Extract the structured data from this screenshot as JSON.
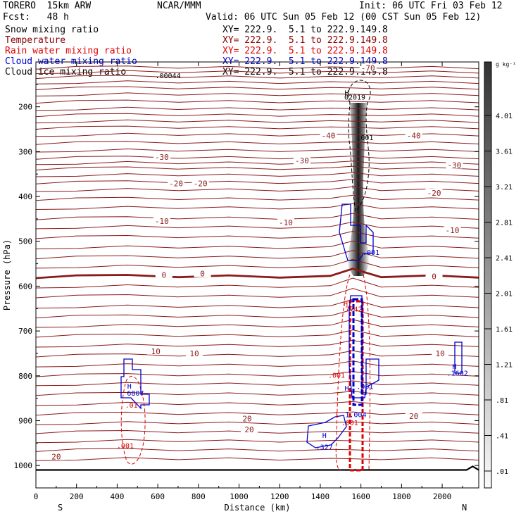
{
  "header": {
    "model": "TORERO  15km ARW",
    "center": "NCAR/MMM",
    "init": "Init: 06 UTC Fri 03 Feb 12",
    "fcst": "Fcst:   48 h",
    "valid": "Valid: 06 UTC Sun 05 Feb 12 (00 CST Sun 05 Feb 12)"
  },
  "fields": [
    {
      "name": "Snow mixing ratio",
      "range": "XY= 222.9.  5.1 to 222.9.149.8",
      "color": "#000000"
    },
    {
      "name": "Temperature",
      "range": "XY= 222.9.  5.1 to 222.9.149.8",
      "color": "#8b0000"
    },
    {
      "name": "Rain water mixing ratio",
      "range": "XY= 222.9.  5.1 to 222.9.149.8",
      "color": "#e00000"
    },
    {
      "name": "Cloud water mixing ratio",
      "range": "XY= 222.9.  5.1 to 222.9.149.8",
      "color": "#0000cc"
    },
    {
      "name": "Cloud ice mixing ratio",
      "range": "XY= 222.9.  5.1 to 222.9.149.8",
      "color": "#000000"
    }
  ],
  "chart_data": {
    "type": "cross-section",
    "xlabel": "Distance (km)",
    "ylabel": "Pressure (hPa)",
    "xlim": [
      0,
      2180
    ],
    "ylim": [
      1050,
      100
    ],
    "x_ticks": [
      "0",
      "200",
      "400",
      "600",
      "800",
      "1000",
      "1200",
      "1400",
      "1600",
      "1800",
      "2000"
    ],
    "y_ticks": [
      "200",
      "300",
      "400",
      "500",
      "600",
      "700",
      "800",
      "900",
      "1000"
    ],
    "x_end_labels": {
      "left": "S",
      "right": "N"
    },
    "colorbar": {
      "unit": "g kg⁻¹",
      "ticks": [
        "4.01",
        "3.61",
        "3.21",
        "2.81",
        "2.41",
        "2.01",
        "1.61",
        "1.21",
        ".81",
        ".41",
        ".01"
      ]
    },
    "temperature_contours": {
      "interval": 5,
      "labels": [
        {
          "text": "-70",
          "x": 1635,
          "p": 113
        },
        {
          "text": "-40",
          "x": 1440,
          "p": 264
        },
        {
          "text": "-40",
          "x": 1860,
          "p": 264
        },
        {
          "text": "-30",
          "x": 620,
          "p": 312
        },
        {
          "text": "-30",
          "x": 1310,
          "p": 320
        },
        {
          "text": "-30",
          "x": 2060,
          "p": 330
        },
        {
          "text": "-20",
          "x": 690,
          "p": 371
        },
        {
          "text": "-20",
          "x": 810,
          "p": 371
        },
        {
          "text": "-20",
          "x": 1960,
          "p": 392
        },
        {
          "text": "-10",
          "x": 620,
          "p": 455
        },
        {
          "text": "-10",
          "x": 1230,
          "p": 458
        },
        {
          "text": "-10",
          "x": 2050,
          "p": 475
        },
        {
          "text": "0",
          "x": 630,
          "p": 575
        },
        {
          "text": "0",
          "x": 820,
          "p": 572
        },
        {
          "text": "0",
          "x": 1960,
          "p": 578
        },
        {
          "text": "10",
          "x": 590,
          "p": 745
        },
        {
          "text": "10",
          "x": 780,
          "p": 750
        },
        {
          "text": "10",
          "x": 1990,
          "p": 750
        },
        {
          "text": "20",
          "x": 1050,
          "p": 920
        },
        {
          "text": "20",
          "x": 1040,
          "p": 895
        },
        {
          "text": "20",
          "x": 1860,
          "p": 890
        },
        {
          "text": "20",
          "x": 100,
          "p": 980
        }
      ]
    },
    "annotations": [
      {
        "text": ".00044",
        "x": 650,
        "p": 130,
        "color": "#000000"
      },
      {
        "text": "H",
        "x": 1530,
        "p": 168,
        "color": "#000000"
      },
      {
        "text": "02019",
        "x": 1570,
        "p": 178,
        "color": "#000000"
      },
      {
        "text": ".001",
        "x": 1620,
        "p": 268,
        "color": "#000000"
      },
      {
        "text": ".001",
        "x": 1650,
        "p": 524,
        "color": "#0000cc"
      },
      {
        "text": "H",
        "x": 1525,
        "p": 638,
        "color": "#e00000"
      },
      {
        "text": "7742",
        "x": 1565,
        "p": 650,
        "color": "#e00000"
      },
      {
        "text": ".001",
        "x": 1480,
        "p": 798,
        "color": "#e00000"
      },
      {
        "text": ".001",
        "x": 1620,
        "p": 823,
        "color": "#0000cc"
      },
      {
        "text": "H",
        "x": 1530,
        "p": 827,
        "color": "#0000cc"
      },
      {
        "text": "1",
        "x": 1480,
        "p": 886,
        "color": "#e00000"
      },
      {
        "text": "1.004",
        "x": 1575,
        "p": 886,
        "color": "#0000cc"
      },
      {
        "text": ".001",
        "x": 1545,
        "p": 904,
        "color": "#e00000"
      },
      {
        "text": "H",
        "x": 1420,
        "p": 932,
        "color": "#0000cc"
      },
      {
        "text": ".327",
        "x": 1420,
        "p": 958,
        "color": "#0000cc"
      },
      {
        "text": "H",
        "x": 460,
        "p": 822,
        "color": "#0000cc"
      },
      {
        "text": "6807",
        "x": 490,
        "p": 838,
        "color": "#0000cc"
      },
      {
        "text": ".01",
        "x": 470,
        "p": 865,
        "color": "#e00000"
      },
      {
        "text": ".001",
        "x": 440,
        "p": 955,
        "color": "#e00000"
      },
      {
        "text": "H",
        "x": 2060,
        "p": 778,
        "color": "#0000cc"
      },
      {
        "text": ".1602",
        "x": 2075,
        "p": 793,
        "color": "#0000cc"
      }
    ]
  }
}
